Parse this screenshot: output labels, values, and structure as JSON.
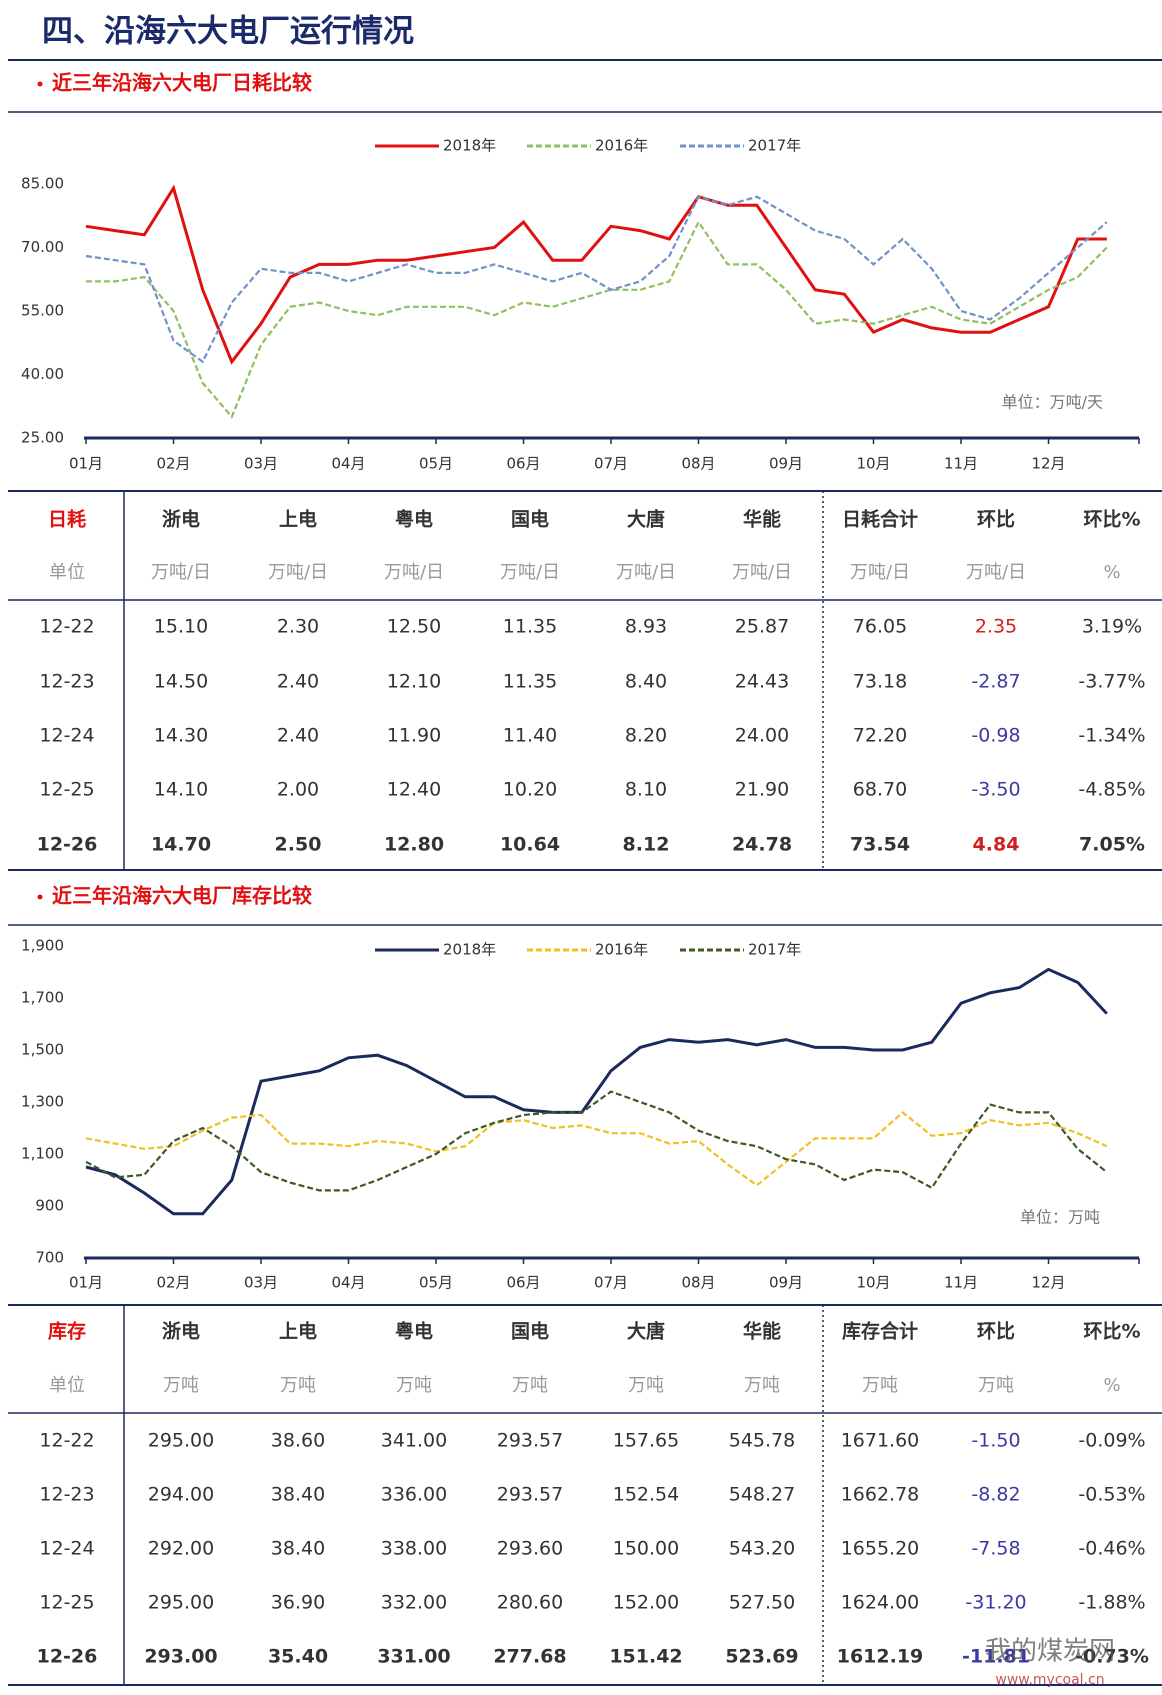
{
  "title": "四、沿海六大电厂运行情况",
  "chart_data": [
    {
      "type": "line",
      "title": "近三年沿海六大电厂日耗比较",
      "unit_note": "单位：万吨/天",
      "categories": [
        "01月",
        null,
        null,
        "02月",
        null,
        null,
        "03月",
        null,
        null,
        "04月",
        null,
        null,
        "05月",
        null,
        null,
        "06月",
        null,
        null,
        "07月",
        null,
        null,
        "08月",
        null,
        null,
        "09月",
        null,
        null,
        "10月",
        null,
        null,
        "11月",
        null,
        null,
        "12月",
        null,
        null
      ],
      "ylim": [
        25,
        85
      ],
      "yticks": [
        {
          "value": 25,
          "label": "25.00"
        },
        {
          "value": 40,
          "label": "40.00"
        },
        {
          "value": 55,
          "label": "55.00"
        },
        {
          "value": 70,
          "label": "70.00"
        },
        {
          "value": 85,
          "label": "85.00"
        }
      ],
      "series": [
        {
          "name": "2018年",
          "color": "#e01010",
          "line_style": "solid",
          "values": [
            75,
            74,
            73,
            84,
            60,
            43,
            52,
            63,
            66,
            66,
            67,
            67,
            68,
            69,
            70,
            76,
            67,
            67,
            75,
            74,
            72,
            82,
            80,
            80,
            70,
            60,
            59,
            50,
            53,
            51,
            50,
            50,
            53,
            56,
            72,
            72
          ]
        },
        {
          "name": "2016年",
          "color": "#8cc060",
          "line_style": "dashed",
          "values": [
            62,
            62,
            63,
            55,
            38,
            30,
            47,
            56,
            57,
            55,
            54,
            56,
            56,
            56,
            54,
            57,
            56,
            58,
            60,
            60,
            62,
            76,
            66,
            66,
            60,
            52,
            53,
            52,
            54,
            56,
            53,
            52,
            56,
            60,
            63,
            70
          ]
        },
        {
          "name": "2017年",
          "color": "#6f92c8",
          "line_style": "dashed",
          "values": [
            68,
            67,
            66,
            48,
            43,
            57,
            65,
            64,
            64,
            62,
            64,
            66,
            64,
            64,
            66,
            64,
            62,
            64,
            60,
            62,
            68,
            82,
            80,
            82,
            78,
            74,
            72,
            66,
            72,
            65,
            55,
            53,
            58,
            64,
            70,
            76
          ]
        }
      ]
    },
    {
      "type": "line",
      "title": "近三年沿海六大电厂库存比较",
      "unit_note": "单位：万吨",
      "categories": [
        "01月",
        null,
        null,
        "02月",
        null,
        null,
        "03月",
        null,
        null,
        "04月",
        null,
        null,
        "05月",
        null,
        null,
        "06月",
        null,
        null,
        "07月",
        null,
        null,
        "08月",
        null,
        null,
        "09月",
        null,
        null,
        "10月",
        null,
        null,
        "11月",
        null,
        null,
        "12月",
        null,
        null
      ],
      "ylim": [
        700,
        1900
      ],
      "yticks": [
        700,
        900,
        {
          "value": 1100,
          "label": "1,100"
        },
        {
          "value": 1300,
          "label": "1,300"
        },
        {
          "value": 1500,
          "label": "1,500"
        },
        {
          "value": 1700,
          "label": "1,700"
        },
        {
          "value": 1900,
          "label": "1,900"
        }
      ],
      "series": [
        {
          "name": "2018年",
          "color": "#1b2a5e",
          "line_style": "solid",
          "values": [
            1050,
            1020,
            950,
            870,
            870,
            1000,
            1380,
            1400,
            1420,
            1470,
            1480,
            1440,
            1380,
            1320,
            1320,
            1270,
            1260,
            1260,
            1420,
            1510,
            1540,
            1530,
            1540,
            1520,
            1540,
            1510,
            1510,
            1500,
            1500,
            1530,
            1680,
            1720,
            1740,
            1810,
            1760,
            1640
          ]
        },
        {
          "name": "2016年",
          "color": "#f0c020",
          "line_style": "dashed",
          "values": [
            1160,
            1140,
            1120,
            1130,
            1190,
            1240,
            1250,
            1140,
            1140,
            1130,
            1150,
            1140,
            1110,
            1130,
            1220,
            1230,
            1200,
            1210,
            1180,
            1180,
            1140,
            1150,
            1060,
            980,
            1070,
            1160,
            1160,
            1160,
            1260,
            1170,
            1180,
            1230,
            1210,
            1220,
            1180,
            1130
          ]
        },
        {
          "name": "2017年",
          "color": "#3d5a22",
          "line_style": "dashed",
          "values": [
            1070,
            1010,
            1020,
            1150,
            1200,
            1130,
            1030,
            990,
            960,
            960,
            1000,
            1050,
            1100,
            1180,
            1220,
            1250,
            1260,
            1260,
            1340,
            1300,
            1260,
            1190,
            1150,
            1130,
            1080,
            1060,
            1000,
            1040,
            1030,
            970,
            1140,
            1290,
            1260,
            1260,
            1120,
            1030
          ]
        }
      ]
    }
  ],
  "tables": [
    {
      "header": [
        "日耗",
        "浙电",
        "上电",
        "粤电",
        "国电",
        "大唐",
        "华能",
        "日耗合计",
        "环比",
        "环比%"
      ],
      "units": [
        "单位",
        "万吨/日",
        "万吨/日",
        "万吨/日",
        "万吨/日",
        "万吨/日",
        "万吨/日",
        "万吨/日",
        "万吨/日",
        "%"
      ],
      "rows": [
        [
          "12-22",
          "15.10",
          "2.30",
          "12.50",
          "11.35",
          "8.93",
          "25.87",
          "76.05",
          "2.35",
          "3.19%"
        ],
        [
          "12-23",
          "14.50",
          "2.40",
          "12.10",
          "11.35",
          "8.40",
          "24.43",
          "73.18",
          "-2.87",
          "-3.77%"
        ],
        [
          "12-24",
          "14.30",
          "2.40",
          "11.90",
          "11.40",
          "8.20",
          "24.00",
          "72.20",
          "-0.98",
          "-1.34%"
        ],
        [
          "12-25",
          "14.10",
          "2.00",
          "12.40",
          "10.20",
          "8.10",
          "21.90",
          "68.70",
          "-3.50",
          "-4.85%"
        ],
        [
          "12-26",
          "14.70",
          "2.50",
          "12.80",
          "10.64",
          "8.12",
          "24.78",
          "73.54",
          "4.84",
          "7.05%"
        ]
      ]
    },
    {
      "header": [
        "库存",
        "浙电",
        "上电",
        "粤电",
        "国电",
        "大唐",
        "华能",
        "库存合计",
        "环比",
        "环比%"
      ],
      "units": [
        "单位",
        "万吨",
        "万吨",
        "万吨",
        "万吨",
        "万吨",
        "万吨",
        "万吨",
        "万吨",
        "%"
      ],
      "rows": [
        [
          "12-22",
          "295.00",
          "38.60",
          "341.00",
          "293.57",
          "157.65",
          "545.78",
          "1671.60",
          "-1.50",
          "-0.09%"
        ],
        [
          "12-23",
          "294.00",
          "38.40",
          "336.00",
          "293.57",
          "152.54",
          "548.27",
          "1662.78",
          "-8.82",
          "-0.53%"
        ],
        [
          "12-24",
          "292.00",
          "38.40",
          "338.00",
          "293.60",
          "150.00",
          "543.20",
          "1655.20",
          "-7.58",
          "-0.46%"
        ],
        [
          "12-25",
          "295.00",
          "36.90",
          "332.00",
          "280.60",
          "152.00",
          "527.50",
          "1624.00",
          "-31.20",
          "-1.88%"
        ],
        [
          "12-26",
          "293.00",
          "35.40",
          "331.00",
          "277.68",
          "151.42",
          "523.69",
          "1612.19",
          "-11.81",
          "-0.73%"
        ]
      ]
    }
  ],
  "watermark": [
    "我的煤炭网",
    "www.mycoal.cn"
  ]
}
